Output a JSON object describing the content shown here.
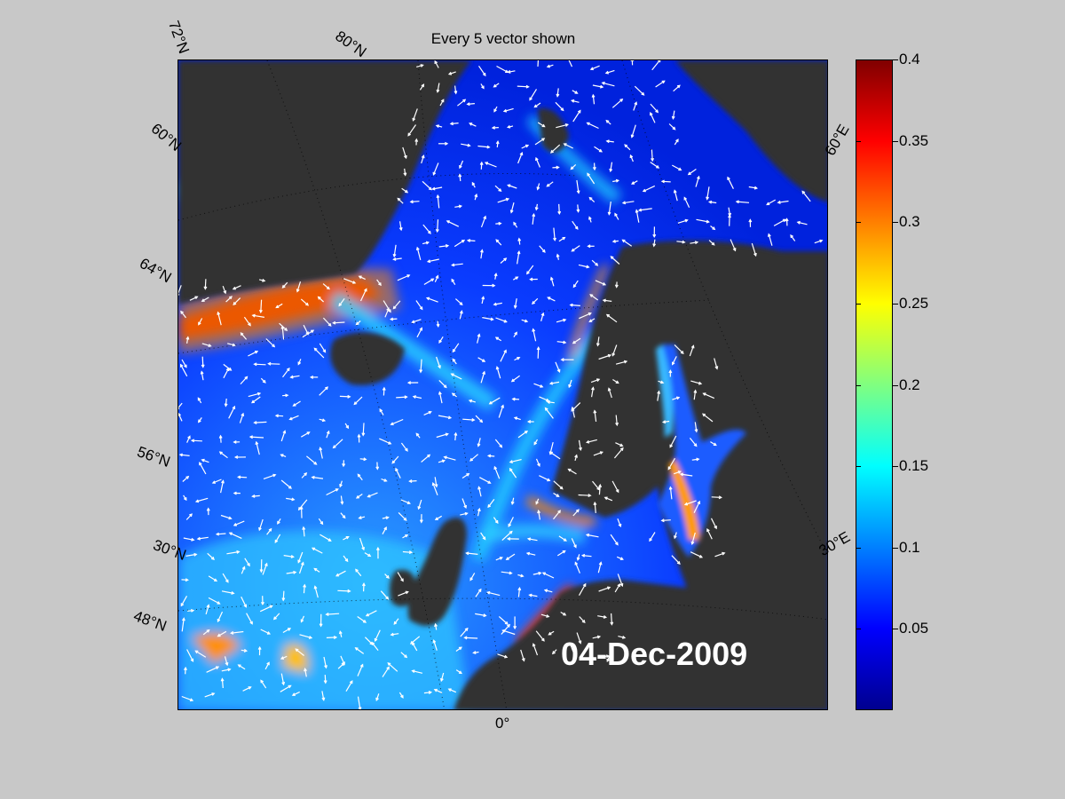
{
  "figure": {
    "title": "Every 5 vector shown",
    "date": "04-Dec-2009"
  },
  "map": {
    "projection": "polar stereographic (North Atlantic / Nordic Seas)",
    "land_color": "#333333",
    "arrow_color": "#ffffff",
    "graticule_labels": [
      "72°N",
      "80°N",
      "60°N",
      "64°N",
      "56°N",
      "30°N",
      "48°N",
      "0°",
      "60°E",
      "30°E"
    ]
  },
  "colorbar": {
    "colormap": "jet",
    "min": 0,
    "max": 0.4,
    "ticks": [
      "0.4",
      "0.35",
      "0.3",
      "0.25",
      "0.2",
      "0.15",
      "0.1",
      "0.05"
    ]
  }
}
